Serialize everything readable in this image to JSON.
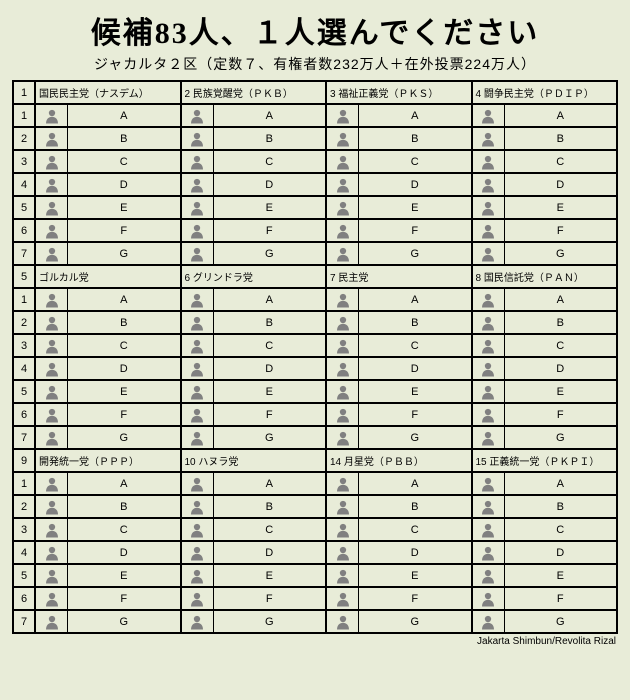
{
  "title": "候補83人、１人選んでください",
  "subtitle": "ジャカルタ２区（定数７、有権者数232万人＋在外投票224万人）",
  "credit": "Jakarta Shimbun/Revolita Rizal",
  "colors": {
    "background": "#e8ecd8",
    "border": "#000000",
    "silhouette": "#808080"
  },
  "candidate_labels": [
    "A",
    "B",
    "C",
    "D",
    "E",
    "F",
    "G"
  ],
  "row_numbers": [
    1,
    2,
    3,
    4,
    5,
    6,
    7
  ],
  "blocks": [
    {
      "header_num": 1,
      "parties": [
        {
          "num": "",
          "name": "国民民主党（ナスデム）"
        },
        {
          "num": "2",
          "name": "民族覚醒党（ＰＫＢ）"
        },
        {
          "num": "3",
          "name": "福祉正義党（ＰＫＳ）"
        },
        {
          "num": "4",
          "name": "闘争民主党（ＰＤＩＰ）"
        }
      ]
    },
    {
      "header_num": 5,
      "parties": [
        {
          "num": "",
          "name": "ゴルカル党"
        },
        {
          "num": "6",
          "name": "グリンドラ党"
        },
        {
          "num": "7",
          "name": "民主党"
        },
        {
          "num": "8",
          "name": "国民信託党（ＰＡＮ）"
        }
      ]
    },
    {
      "header_num": 9,
      "parties": [
        {
          "num": "",
          "name": "開発統一党（ＰＰＰ）"
        },
        {
          "num": "10",
          "name": "ハヌラ党"
        },
        {
          "num": "14",
          "name": "月星党（ＰＢＢ）"
        },
        {
          "num": "15",
          "name": "正義統一党（ＰＫＰＩ）"
        }
      ]
    }
  ]
}
